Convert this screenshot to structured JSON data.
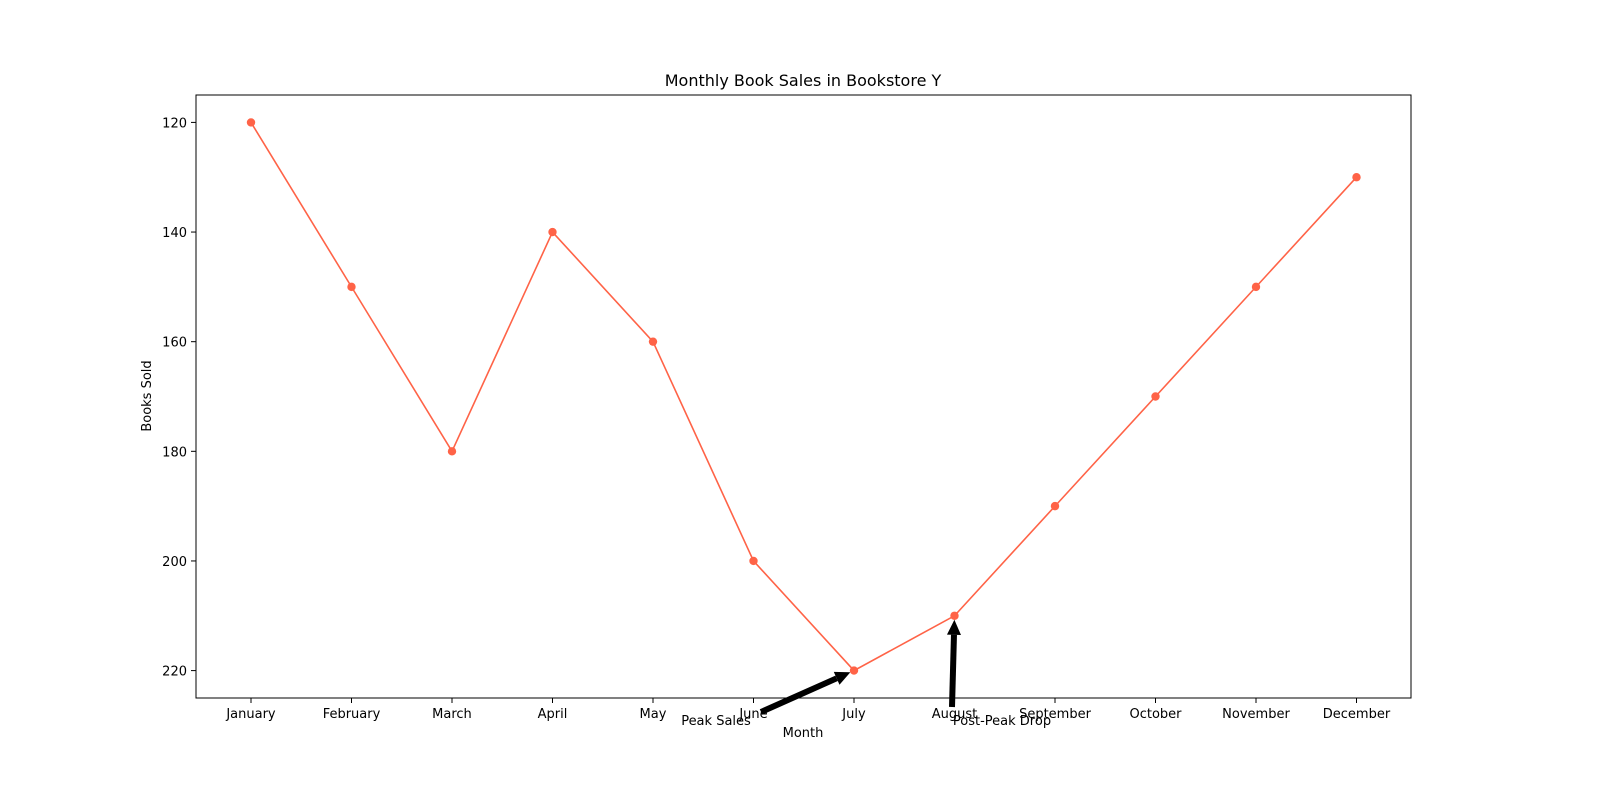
{
  "chart_data": {
    "type": "line",
    "title": "Monthly Book Sales in Bookstore Y",
    "xlabel": "Month",
    "ylabel": "Books Sold",
    "categories": [
      "January",
      "February",
      "March",
      "April",
      "May",
      "June",
      "July",
      "August",
      "September",
      "October",
      "November",
      "December"
    ],
    "series": [
      {
        "values": [
          120,
          150,
          180,
          140,
          160,
          200,
          220,
          210,
          190,
          170,
          150,
          130
        ],
        "color": "#ff6347"
      }
    ],
    "ylim": [
      225,
      115
    ],
    "y_inverted": true,
    "yticks": [
      120,
      140,
      160,
      180,
      200,
      220
    ],
    "grid": false,
    "annotations": [
      {
        "text": "Peak Sales",
        "target_category": "July",
        "target_value": 220
      },
      {
        "text": "Post-Peak Drop",
        "target_category": "August",
        "target_value": 210
      }
    ]
  }
}
